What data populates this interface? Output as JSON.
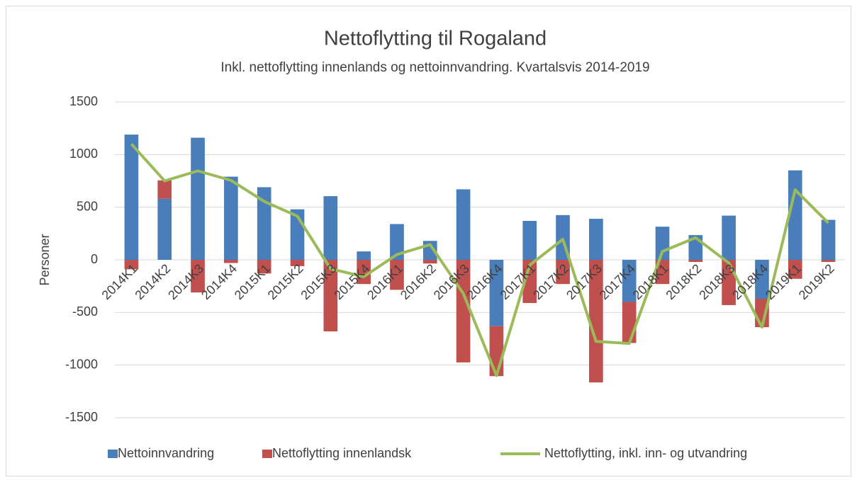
{
  "chart_data": {
    "type": "bar_line",
    "title": "Nettoflytting til Rogaland",
    "subtitle": "Inkl. nettoflytting innenlands og nettoinnvandring. Kvartalsvis 2014-2019",
    "y_label": "Personer",
    "categories": [
      "2014K1",
      "2014K2",
      "2014K3",
      "2014K4",
      "2015K1",
      "2015K2",
      "2015K3",
      "2015K4",
      "2016K1",
      "2016K2",
      "2016K3",
      "2016K4",
      "2017K1",
      "2017K2",
      "2017K3",
      "2017K4",
      "2018K1",
      "2018K2",
      "2018K3",
      "2018K4",
      "2019K1",
      "2019K2"
    ],
    "series": [
      {
        "name": "Nettoinnvandring",
        "type": "bar",
        "color": "#4a7ebb",
        "values": [
          1190,
          580,
          1160,
          790,
          690,
          480,
          605,
          80,
          340,
          180,
          670,
          -630,
          370,
          425,
          390,
          -400,
          315,
          235,
          420,
          -370,
          850,
          380
        ]
      },
      {
        "name": "Nettoflytting innenlandsk",
        "type": "bar",
        "color": "#c0504d",
        "values": [
          -90,
          175,
          -310,
          -30,
          -130,
          -60,
          -680,
          -230,
          -285,
          -35,
          -975,
          -475,
          -410,
          -230,
          -1165,
          -390,
          -230,
          -20,
          -430,
          -270,
          -180,
          -20
        ]
      },
      {
        "name": "Nettoflytting, inkl. inn- og utvandring",
        "type": "line",
        "color": "#9bbb59",
        "values": [
          1100,
          750,
          845,
          755,
          555,
          415,
          -85,
          -160,
          50,
          145,
          -320,
          -1100,
          -50,
          195,
          -775,
          -795,
          80,
          210,
          -30,
          -640,
          665,
          350
        ]
      }
    ],
    "ylim": [
      -1500,
      1500
    ],
    "yticks": [
      1500,
      1000,
      500,
      0,
      -500,
      -1000,
      -1500
    ],
    "grid": true,
    "legend": "bottom"
  }
}
